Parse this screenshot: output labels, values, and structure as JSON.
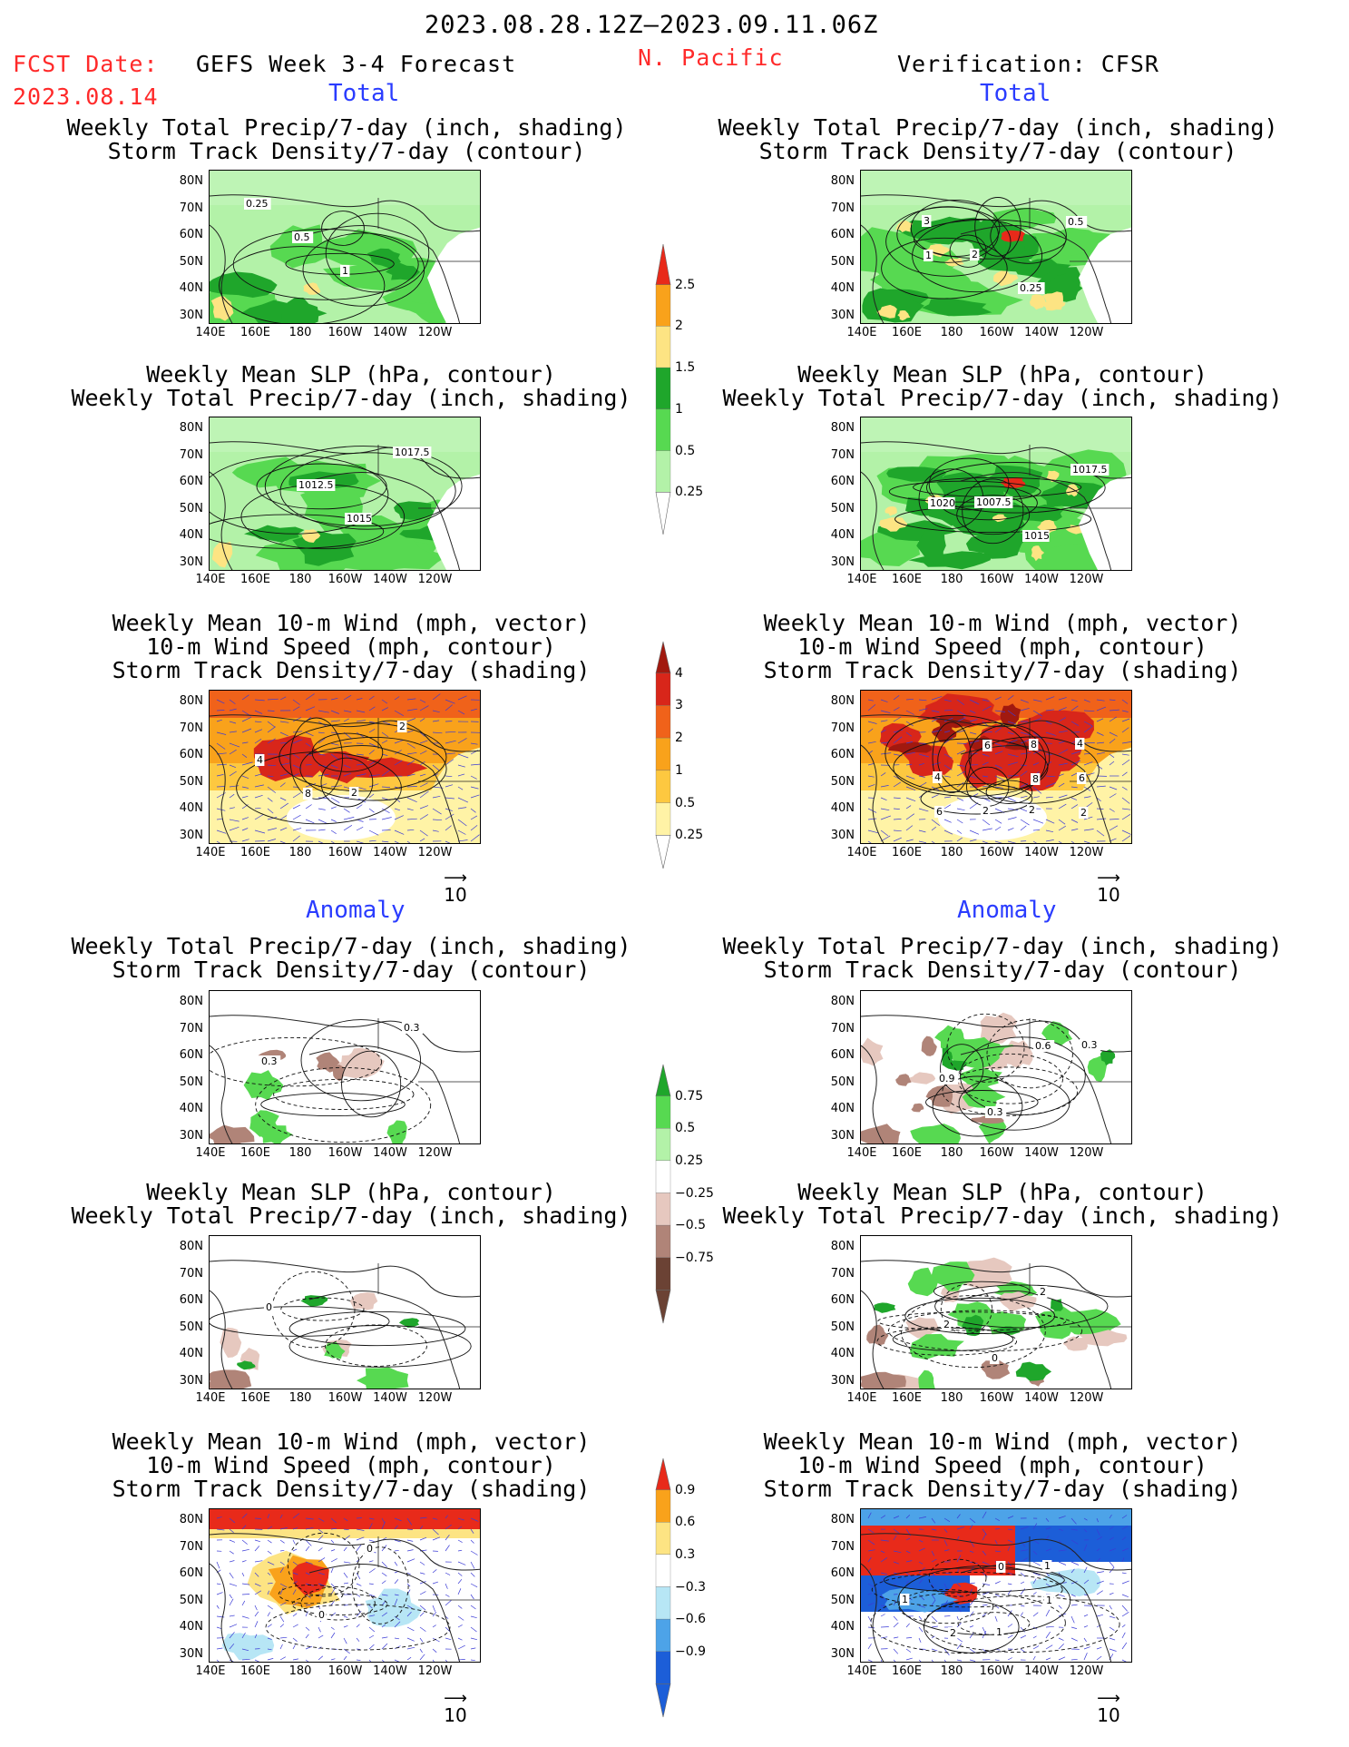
{
  "header": {
    "period": "2023.08.28.12Z–2023.09.11.06Z",
    "fcst_label": "FCST Date:",
    "fcst_date": "2023.08.14",
    "model_title": "GEFS Week 3-4 Forecast",
    "region": "N. Pacific",
    "verification": "Verification: CFSR"
  },
  "sections": {
    "total": "Total",
    "anomaly": "Anomaly"
  },
  "titles": {
    "precip_track": [
      "Weekly Total Precip/7-day (inch, shading)",
      "Storm Track Density/7-day (contour)"
    ],
    "slp_precip": [
      "Weekly Mean SLP (hPa, contour)",
      "Weekly Total Precip/7-day (inch, shading)"
    ],
    "wind_track": [
      "Weekly Mean 10-m Wind (mph, vector)",
      "10-m Wind Speed (mph, contour)",
      "Storm Track Density/7-day (shading)"
    ]
  },
  "axes": {
    "lat_labels": [
      "80N",
      "70N",
      "60N",
      "50N",
      "40N",
      "30N"
    ],
    "lon_labels": [
      "140E",
      "160E",
      "180",
      "160W",
      "140W",
      "120W"
    ]
  },
  "vector_ref": "10",
  "colorbars": {
    "precip_total": {
      "labels": [
        "2.5",
        "2",
        "1.5",
        "1",
        "0.5",
        "0.25"
      ],
      "colors": [
        "#e82a1a",
        "#f9a21b",
        "#fde483",
        "#1fa62b",
        "#57d951",
        "#b3f2a8"
      ]
    },
    "track_total": {
      "labels": [
        "4",
        "3",
        "2",
        "1",
        "0.5",
        "0.25"
      ],
      "colors": [
        "#a1190f",
        "#d8261a",
        "#f0621a",
        "#f9a21b",
        "#fdc840",
        "#fff3a6"
      ]
    },
    "precip_anom": {
      "labels": [
        "0.75",
        "0.5",
        "0.25",
        "−0.25",
        "−0.5",
        "−0.75"
      ],
      "colors": [
        "#1fa62b",
        "#57d951",
        "#b3f2a8",
        "#ffffff",
        "#e6c8bf",
        "#b08478",
        "#6b4234"
      ]
    },
    "track_anom": {
      "labels": [
        "0.9",
        "0.6",
        "0.3",
        "−0.3",
        "−0.6",
        "−0.9"
      ],
      "colors": [
        "#e82a1a",
        "#f9a21b",
        "#fde483",
        "#ffffff",
        "#b7e6f5",
        "#4da3e8",
        "#1c5ed8"
      ]
    },
    "edge_color": "#666666"
  },
  "panels": [
    {
      "id": "fc-total-precip",
      "labels": [
        "0.25",
        "0.5",
        "1"
      ]
    },
    {
      "id": "ver-total-precip",
      "labels": [
        "3",
        "2",
        "0.25",
        "0.5",
        "1"
      ]
    },
    {
      "id": "fc-total-slp",
      "labels": [
        "1012.5",
        "1015",
        "1017.5"
      ]
    },
    {
      "id": "ver-total-slp",
      "labels": [
        "1007.5",
        "1015",
        "1017.5",
        "1020"
      ]
    },
    {
      "id": "fc-total-wind",
      "labels": [
        "2",
        "2",
        "4",
        "8"
      ]
    },
    {
      "id": "ver-total-wind",
      "labels": [
        "2",
        "4",
        "4",
        "2",
        "8",
        "6",
        "6",
        "6",
        "8",
        "2"
      ]
    },
    {
      "id": "fc-anom-precip",
      "labels": [
        "0.3",
        "0.3"
      ]
    },
    {
      "id": "ver-anom-precip",
      "labels": [
        "0.3",
        "0.9",
        "0.3",
        "0.6"
      ]
    },
    {
      "id": "fc-anom-slp",
      "labels": [
        "0"
      ]
    },
    {
      "id": "ver-anom-slp",
      "labels": [
        "2",
        "0",
        "2"
      ]
    },
    {
      "id": "fc-anom-wind",
      "labels": [
        "0",
        "0"
      ]
    },
    {
      "id": "ver-anom-wind",
      "labels": [
        "1",
        "1",
        "1",
        "2",
        "0",
        "1"
      ]
    }
  ]
}
